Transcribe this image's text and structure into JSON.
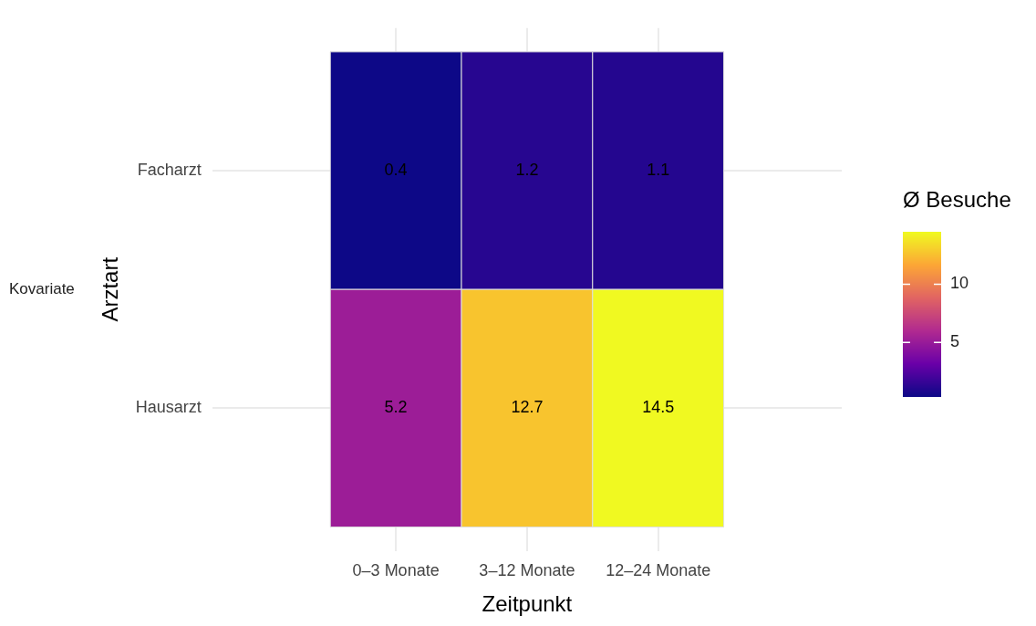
{
  "chart_data": {
    "type": "heatmap",
    "xlabel": "Zeitpunkt",
    "ylabel": "Arztart",
    "clabel": "Ø Besuche",
    "categories": [
      "0–3 Monate",
      "3–12 Monate",
      "12–24 Monate"
    ],
    "y_categories": [
      "Facharzt",
      "Hausarzt"
    ],
    "cells": [
      [
        0.4,
        1.2,
        1.1
      ],
      [
        5.2,
        12.7,
        14.5
      ]
    ],
    "clim": [
      0.4,
      14.5
    ],
    "cticks": [
      5,
      10
    ],
    "data_labels": true,
    "grid": true,
    "annotations": [
      "Kovariate"
    ]
  }
}
